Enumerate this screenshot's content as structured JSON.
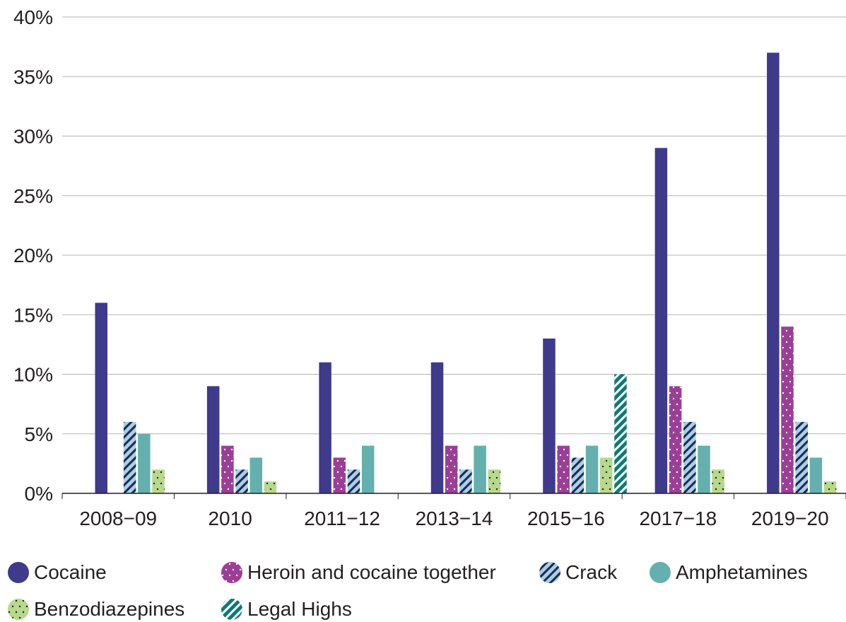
{
  "chart_data": {
    "type": "bar",
    "categories": [
      "2008−09",
      "2010",
      "2011−12",
      "2013−14",
      "2015−16",
      "2017−18",
      "2019−20"
    ],
    "series": [
      {
        "name": "Cocaine",
        "values": [
          16,
          9,
          11,
          11,
          13,
          29,
          37
        ],
        "color": "#3f3a8c",
        "pattern": "solid"
      },
      {
        "name": "Heroin and cocaine together",
        "values": [
          0,
          4,
          3,
          4,
          4,
          9,
          14
        ],
        "color": "#9b3f96",
        "pattern": "dots"
      },
      {
        "name": "Crack",
        "values": [
          6,
          2,
          2,
          2,
          3,
          6,
          6
        ],
        "color": "#a9cdeb",
        "pattern": "hatch"
      },
      {
        "name": "Amphetamines",
        "values": [
          5,
          3,
          4,
          4,
          4,
          4,
          3
        ],
        "color": "#64b0ae",
        "pattern": "solid"
      },
      {
        "name": "Benzodiazepines",
        "values": [
          2,
          1,
          0,
          2,
          3,
          2,
          1
        ],
        "color": "#b6d98b",
        "pattern": "dots"
      },
      {
        "name": "Legal Highs",
        "values": [
          0,
          0,
          0,
          0,
          10,
          0,
          0
        ],
        "color": "#117a74",
        "pattern": "hatch"
      }
    ],
    "y_ticks": [
      "0%",
      "5%",
      "10%",
      "15%",
      "20%",
      "25%",
      "30%",
      "35%",
      "40%"
    ],
    "ylim": [
      0,
      40
    ],
    "grid": true,
    "legend_position": "bottom"
  }
}
